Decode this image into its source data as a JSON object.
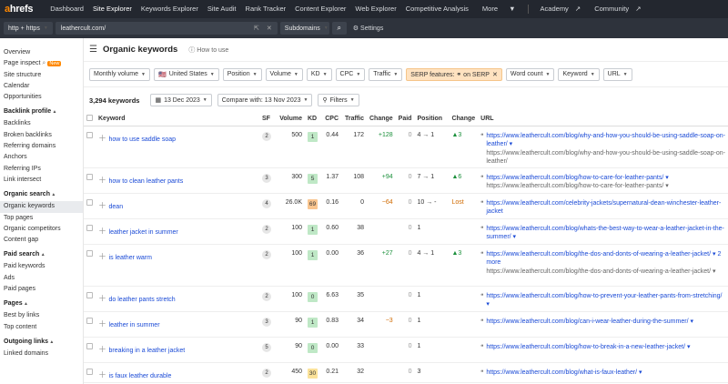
{
  "app": {
    "logo_a": "a",
    "logo_rest": "hrefs"
  },
  "nav": [
    "Dashboard",
    "Site Explorer",
    "Keywords Explorer",
    "Site Audit",
    "Rank Tracker",
    "Content Explorer",
    "Web Explorer",
    "Competitive Analysis",
    "More",
    "Academy",
    "Community"
  ],
  "search": {
    "protocol": "http + https",
    "url": "leathercult.com/",
    "scope": "Subdomains",
    "settings": "Settings"
  },
  "sidebar": {
    "top": [
      "Overview",
      "Page inspect",
      "Site structure",
      "Calendar",
      "Opportunities"
    ],
    "new_badge": "New",
    "sections": [
      {
        "title": "Backlink profile",
        "items": [
          "Backlinks",
          "Broken backlinks",
          "Referring domains",
          "Anchors",
          "Referring IPs",
          "Link intersect"
        ]
      },
      {
        "title": "Organic search",
        "items": [
          "Organic keywords",
          "Top pages",
          "Organic competitors",
          "Content gap"
        ]
      },
      {
        "title": "Paid search",
        "items": [
          "Paid keywords",
          "Ads",
          "Paid pages"
        ]
      },
      {
        "title": "Pages",
        "items": [
          "Best by links",
          "Top content"
        ]
      },
      {
        "title": "Outgoing links",
        "items": [
          "Linked domains"
        ]
      }
    ]
  },
  "page": {
    "title": "Organic keywords",
    "howto": "How to use"
  },
  "filters": [
    "Monthly volume",
    "United States",
    "Position",
    "Volume",
    "KD",
    "CPC",
    "Traffic",
    "SERP features: ⚭ on SERP",
    "Word count",
    "Keyword",
    "URL"
  ],
  "toolbar": {
    "count": "3,294 keywords",
    "date": "13 Dec 2023",
    "compare": "Compare with: 13 Nov 2023",
    "filters": "Filters"
  },
  "columns": [
    "Keyword",
    "SF",
    "Volume",
    "KD",
    "CPC",
    "Traffic",
    "Change",
    "Paid",
    "Position",
    "Change",
    "URL"
  ],
  "rows": [
    {
      "kw": "how to use saddle soap",
      "sf": "2",
      "vol": "500",
      "kd": "1",
      "kdc": "#bfe8c6",
      "cpc": "0.44",
      "traffic": "172",
      "chg": "+128",
      "chgc": "pos",
      "paid": "0",
      "pos": "4 → 1",
      "pchg": "▲3",
      "pchgc": "pos",
      "url": "https://www.leathercult.com/blog/why-and-how-you-should-be-using-saddle-soap-on-leather/ ▾",
      "sub": "https://www.leathercult.com/blog/why-and-how-you-should-be-using-saddle-soap-on-leather/",
      "h": 46
    },
    {
      "kw": "how to clean leather pants",
      "sf": "3",
      "vol": "300",
      "kd": "5",
      "kdc": "#bfe8c6",
      "cpc": "1.37",
      "traffic": "108",
      "chg": "+94",
      "chgc": "pos",
      "paid": "0",
      "pos": "7 → 1",
      "pchg": "▲6",
      "pchgc": "pos",
      "url": "https://www.leathercult.com/blog/how-to-care-for-leather-pants/ ▾",
      "sub": "https://www.leathercult.com/blog/how-to-care-for-leather-pants/ ▾",
      "h": 28
    },
    {
      "kw": "dean",
      "sf": "4",
      "vol": "26.0K",
      "kd": "69",
      "kdc": "#f9c58f",
      "cpc": "0.16",
      "traffic": "0",
      "chg": "−64",
      "chgc": "neg",
      "paid": "0",
      "pos": "10 → -",
      "pchg": "Lost",
      "pchgc": "neg",
      "url": "https://www.leathercult.com/celebrity-jackets/supernatural-dean-winchester-leather-jacket",
      "sub": "",
      "h": 28
    },
    {
      "kw": "leather jacket in summer",
      "sf": "2",
      "vol": "100",
      "kd": "1",
      "kdc": "#bfe8c6",
      "cpc": "0.60",
      "traffic": "38",
      "chg": "",
      "chgc": "",
      "paid": "0",
      "pos": "1",
      "pchg": "",
      "pchgc": "",
      "url": "https://www.leathercult.com/blog/whats-the-best-way-to-wear-a-leather-jacket-in-the-summer/ ▾",
      "sub": "",
      "h": 28
    },
    {
      "kw": "is leather warm",
      "sf": "2",
      "vol": "100",
      "kd": "1",
      "kdc": "#bfe8c6",
      "cpc": "0.00",
      "traffic": "36",
      "chg": "+27",
      "chgc": "pos",
      "paid": "0",
      "pos": "4 → 1",
      "pchg": "▲3",
      "pchgc": "pos",
      "url": "https://www.leathercult.com/blog/the-dos-and-donts-of-wearing-a-leather-jacket/ ▾  2 more",
      "sub": "https://www.leathercult.com/blog/the-dos-and-donts-of-wearing-a-leather-jacket/ ▾",
      "h": 46
    },
    {
      "kw": "do leather pants stretch",
      "sf": "2",
      "vol": "100",
      "kd": "0",
      "kdc": "#bfe8c6",
      "cpc": "6.63",
      "traffic": "35",
      "chg": "",
      "chgc": "",
      "paid": "0",
      "pos": "1",
      "pchg": "",
      "pchgc": "",
      "url": "https://www.leathercult.com/blog/how-to-prevent-your-leather-pants-from-stretching/ ▾",
      "sub": "",
      "h": 28
    },
    {
      "kw": "leather in summer",
      "sf": "3",
      "vol": "90",
      "kd": "1",
      "kdc": "#bfe8c6",
      "cpc": "0.83",
      "traffic": "34",
      "chg": "−3",
      "chgc": "neg",
      "paid": "0",
      "pos": "1",
      "pchg": "",
      "pchgc": "",
      "url": "https://www.leathercult.com/blog/can-i-wear-leather-during-the-summer/ ▾",
      "sub": "",
      "h": 28
    },
    {
      "kw": "breaking in a leather jacket",
      "sf": "5",
      "vol": "90",
      "kd": "0",
      "kdc": "#bfe8c6",
      "cpc": "0.00",
      "traffic": "33",
      "chg": "",
      "chgc": "",
      "paid": "0",
      "pos": "1",
      "pchg": "",
      "pchgc": "",
      "url": "https://www.leathercult.com/blog/how-to-break-in-a-new-leather-jacket/ ▾",
      "sub": "",
      "h": 28
    },
    {
      "kw": "is faux leather durable",
      "sf": "2",
      "vol": "450",
      "kd": "30",
      "kdc": "#fbe29a",
      "cpc": "0.21",
      "traffic": "32",
      "chg": "",
      "chgc": "",
      "paid": "0",
      "pos": "3",
      "pchg": "",
      "pchgc": "",
      "url": "https://www.leathercult.com/blog/what-is-faux-leather/ ▾",
      "sub": "",
      "h": 22
    }
  ]
}
